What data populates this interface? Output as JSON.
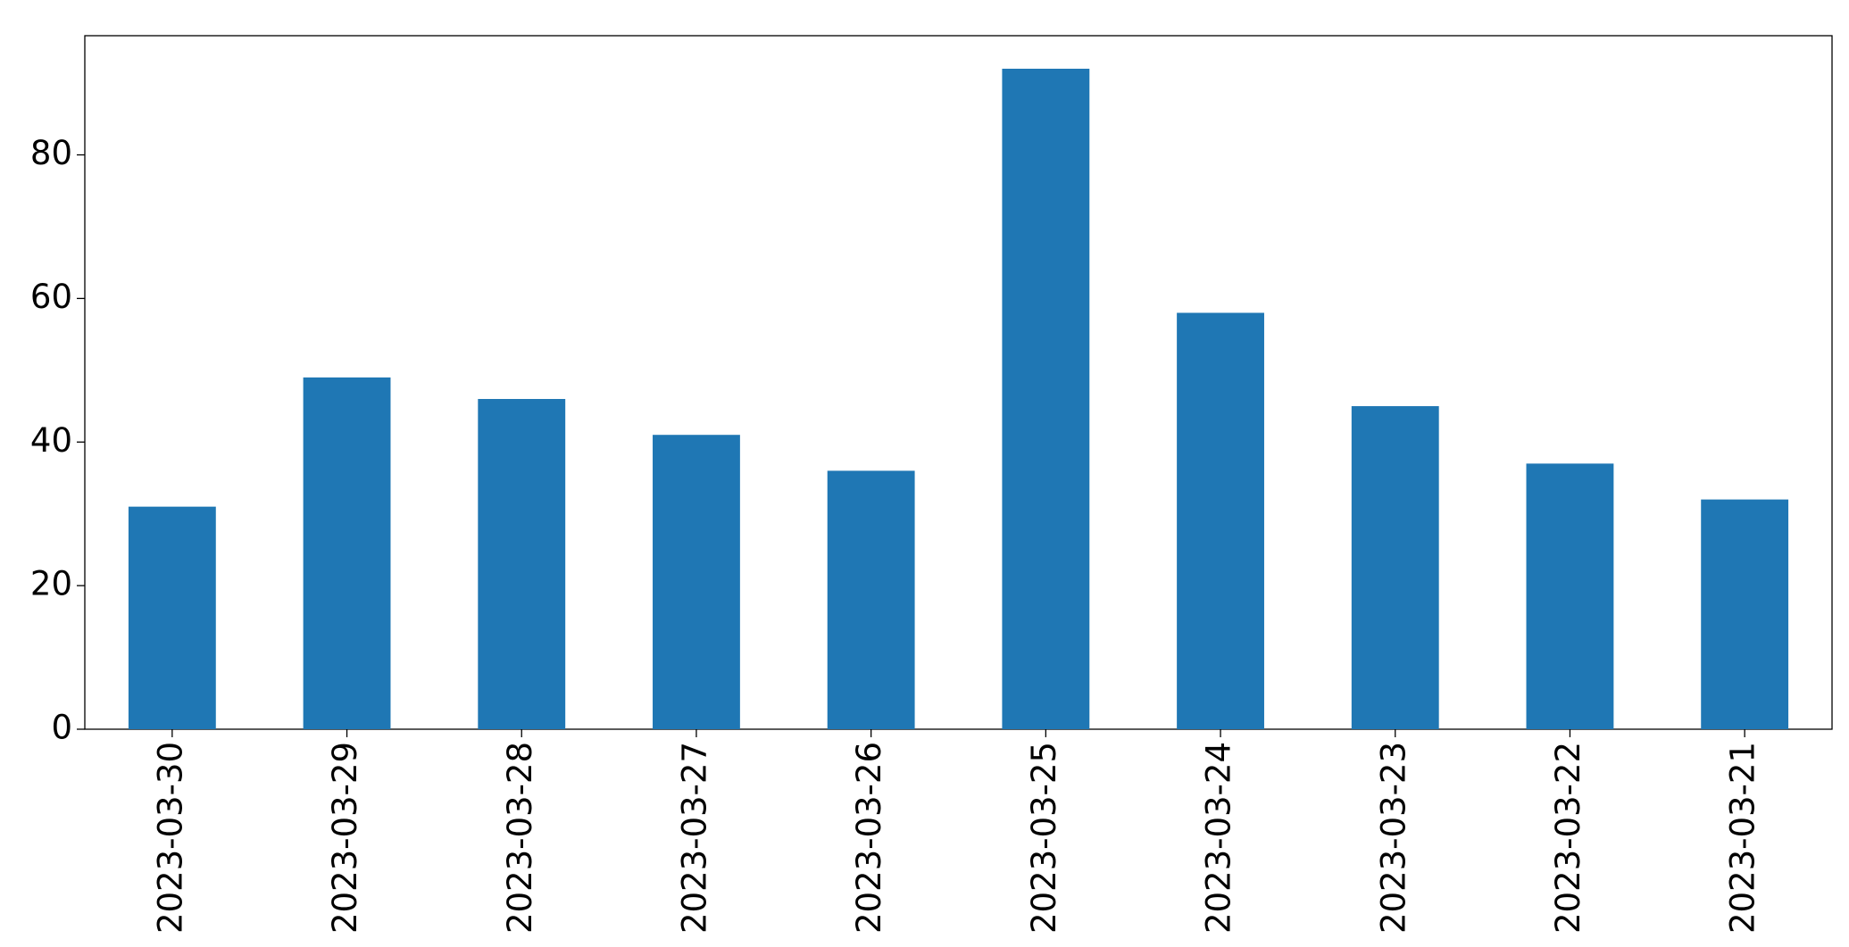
{
  "chart_data": {
    "type": "bar",
    "categories": [
      "2023-03-30",
      "2023-03-29",
      "2023-03-28",
      "2023-03-27",
      "2023-03-26",
      "2023-03-25",
      "2023-03-24",
      "2023-03-23",
      "2023-03-22",
      "2023-03-21"
    ],
    "values": [
      31,
      49,
      46,
      41,
      36,
      92,
      58,
      45,
      37,
      32
    ],
    "color": "#1f77b4",
    "ylim": [
      0,
      96.6
    ],
    "yticks": [
      0,
      20,
      40,
      60,
      80
    ],
    "grid": false
  }
}
